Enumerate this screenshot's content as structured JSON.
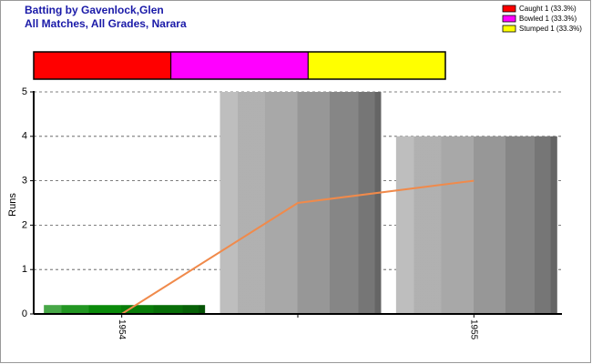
{
  "chart_data": [
    {
      "type": "stacked-bar",
      "title": "Batting by Gavenlock,Glen",
      "subtitle": "All Matches, All Grades, Narara",
      "series": [
        {
          "name": "Caught 1 (33.3%)",
          "color": "#ff0000",
          "values": [
            1
          ]
        },
        {
          "name": "Bowled 1 (33.3%)",
          "color": "#ff00ff",
          "values": [
            1
          ]
        },
        {
          "name": "Stumped 1 (33.3%)",
          "color": "#ffff00",
          "values": [
            1
          ]
        }
      ]
    },
    {
      "type": "bar-line",
      "y_label": "Runs",
      "categories": [
        "1954",
        null,
        "1955"
      ],
      "series": [
        {
          "type": "bar",
          "colors": [
            "#0a8a0a",
            "#a8a8a8",
            "#a8a8a8"
          ],
          "values": [
            0.2,
            5,
            4
          ]
        },
        {
          "type": "line",
          "color": "#f08a4b",
          "values": [
            0,
            2.5,
            3
          ]
        }
      ],
      "ylim": [
        0,
        5
      ],
      "yticks": [
        0,
        1,
        2,
        3,
        4,
        5
      ],
      "grid": true
    }
  ]
}
